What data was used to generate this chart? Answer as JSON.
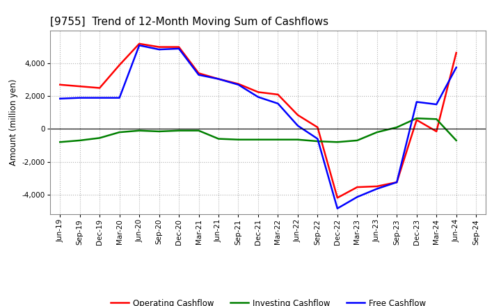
{
  "title": "[9755]  Trend of 12-Month Moving Sum of Cashflows",
  "ylabel": "Amount (million yen)",
  "x_labels": [
    "Jun-19",
    "Sep-19",
    "Dec-19",
    "Mar-20",
    "Jun-20",
    "Sep-20",
    "Dec-20",
    "Mar-21",
    "Jun-21",
    "Sep-21",
    "Dec-21",
    "Mar-22",
    "Jun-22",
    "Sep-22",
    "Dec-22",
    "Mar-23",
    "Jun-23",
    "Sep-23",
    "Dec-23",
    "Mar-24",
    "Jun-24",
    "Sep-24"
  ],
  "operating": [
    2700,
    2600,
    2500,
    3900,
    5200,
    5000,
    5000,
    3400,
    3050,
    2750,
    2250,
    2100,
    850,
    100,
    -4200,
    -3550,
    -3500,
    -3250,
    550,
    -150,
    4650,
    null
  ],
  "investing": [
    -800,
    -700,
    -550,
    -200,
    -100,
    -150,
    -100,
    -100,
    -600,
    -650,
    -650,
    -650,
    -650,
    -750,
    -800,
    -700,
    -200,
    100,
    650,
    600,
    -700,
    null
  ],
  "free": [
    1850,
    1900,
    1900,
    1900,
    5100,
    4850,
    4900,
    3300,
    3050,
    2700,
    1950,
    1550,
    200,
    -600,
    -4850,
    -4150,
    -3650,
    -3250,
    1650,
    1500,
    3750,
    null
  ],
  "operating_color": "#ff0000",
  "investing_color": "#008000",
  "free_color": "#0000ff",
  "ylim": [
    -5200,
    6000
  ],
  "yticks": [
    -4000,
    -2000,
    0,
    2000,
    4000
  ],
  "background_color": "#ffffff",
  "grid_color": "#b0b0b0",
  "title_fontsize": 11,
  "ylabel_fontsize": 8.5,
  "tick_fontsize": 7.5,
  "legend_fontsize": 8.5,
  "linewidth": 1.8
}
